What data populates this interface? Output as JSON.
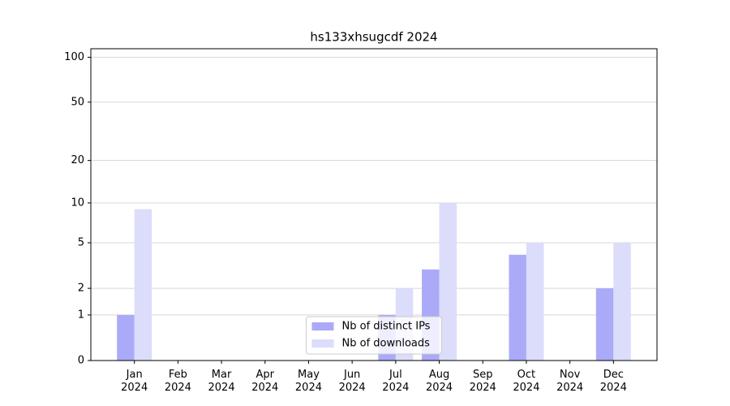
{
  "chart_data": {
    "type": "bar",
    "title": "hs133xhsugcdf 2024",
    "categories": [
      [
        "Jan",
        "2024"
      ],
      [
        "Feb",
        "2024"
      ],
      [
        "Mar",
        "2024"
      ],
      [
        "Apr",
        "2024"
      ],
      [
        "May",
        "2024"
      ],
      [
        "Jun",
        "2024"
      ],
      [
        "Jul",
        "2024"
      ],
      [
        "Aug",
        "2024"
      ],
      [
        "Sep",
        "2024"
      ],
      [
        "Oct",
        "2024"
      ],
      [
        "Nov",
        "2024"
      ],
      [
        "Dec",
        "2024"
      ]
    ],
    "series": [
      {
        "name": "Nb of distinct IPs",
        "color": "#aaaaf8",
        "values": [
          1,
          0,
          0,
          0,
          0,
          0,
          1,
          3,
          0,
          4,
          0,
          2
        ]
      },
      {
        "name": "Nb of downloads",
        "color": "#dcdcfb",
        "values": [
          9,
          0,
          0,
          0,
          0,
          0,
          2,
          10,
          0,
          5,
          0,
          5
        ]
      }
    ],
    "y_scale": "log1p",
    "ylim": [
      0,
      114
    ],
    "yticks": [
      0,
      1,
      2,
      5,
      10,
      20,
      50,
      100
    ],
    "grid": true,
    "legend": "lower center"
  }
}
